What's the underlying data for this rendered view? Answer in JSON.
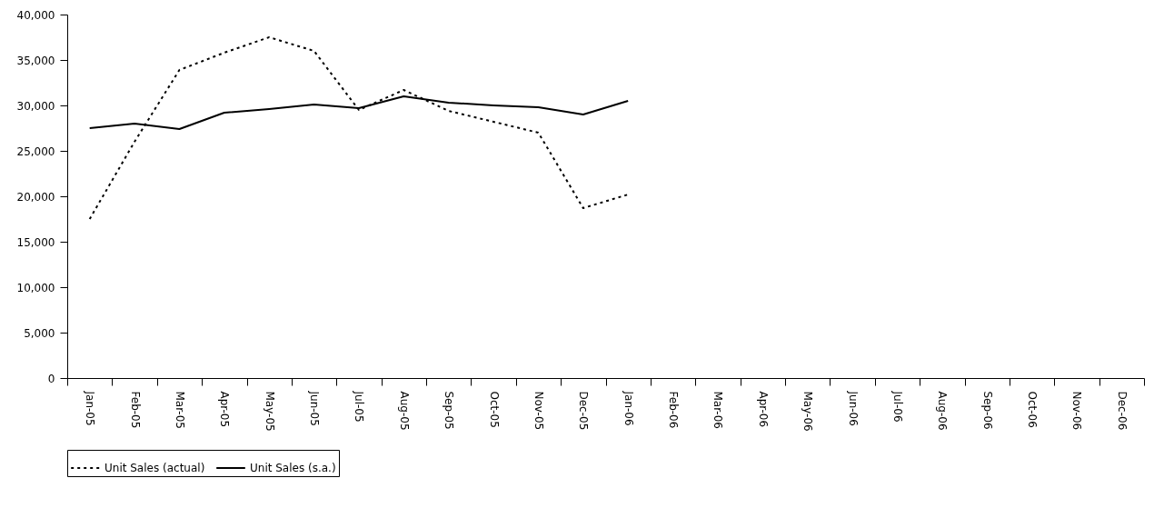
{
  "chart_data": {
    "type": "line",
    "categories": [
      "Jan-05",
      "Feb-05",
      "Mar-05",
      "Apr-05",
      "May-05",
      "Jun-05",
      "Jul-05",
      "Aug-05",
      "Sep-05",
      "Oct-05",
      "Nov-05",
      "Dec-05",
      "Jan-06",
      "Feb-06",
      "Mar-06",
      "Apr-06",
      "May-06",
      "Jun-06",
      "Jul-06",
      "Aug-06",
      "Sep-06",
      "Oct-06",
      "Nov-06",
      "Dec-06"
    ],
    "series": [
      {
        "name": "Unit Sales (actual)",
        "color": "#000000",
        "line_style": "dotted",
        "values": [
          17500,
          26000,
          33900,
          35800,
          37500,
          36000,
          29500,
          31700,
          29400,
          28200,
          27000,
          18700,
          20200,
          null,
          null,
          null,
          null,
          null,
          null,
          null,
          null,
          null,
          null,
          null
        ]
      },
      {
        "name": "Unit Sales (s.a.)",
        "color": "#000000",
        "line_style": "solid",
        "values": [
          27500,
          28000,
          27400,
          29200,
          29600,
          30100,
          29700,
          31000,
          30300,
          30000,
          29800,
          29000,
          30500,
          null,
          null,
          null,
          null,
          null,
          null,
          null,
          null,
          null,
          null,
          null
        ]
      }
    ],
    "ylim": [
      0,
      40000
    ],
    "yticks": [
      0,
      {
        "value": 5000,
        "label": "5,000"
      },
      {
        "value": 10000,
        "label": "10,000"
      },
      {
        "value": 15000,
        "label": "15,000"
      },
      {
        "value": 20000,
        "label": "20,000"
      },
      {
        "value": 25000,
        "label": "25,000"
      },
      {
        "value": 30000,
        "label": "30,000"
      },
      {
        "value": 35000,
        "label": "35,000"
      },
      {
        "value": 40000,
        "label": "40,000"
      }
    ],
    "grid": false,
    "legend": "bottom",
    "marker": "none"
  }
}
